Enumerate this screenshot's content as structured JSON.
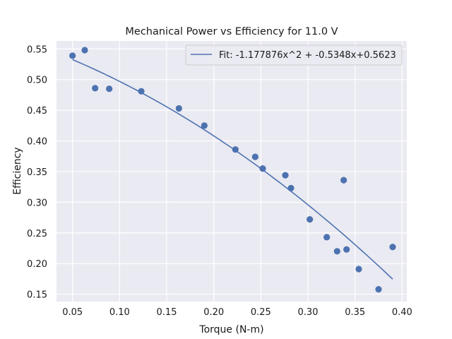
{
  "chart_data": {
    "type": "scatter",
    "title": "Mechanical Power vs Efficiency for 11.0 V",
    "xlabel": "Torque (N-m)",
    "ylabel": "Efficiency",
    "xlim": [
      0.033,
      0.405
    ],
    "ylim": [
      0.138,
      0.563
    ],
    "xticks": [
      0.05,
      0.1,
      0.15,
      0.2,
      0.25,
      0.3,
      0.35,
      0.4
    ],
    "xtick_labels": [
      "0.05",
      "0.10",
      "0.15",
      "0.20",
      "0.25",
      "0.30",
      "0.35",
      "0.40"
    ],
    "yticks": [
      0.15,
      0.2,
      0.25,
      0.3,
      0.35,
      0.4,
      0.45,
      0.5,
      0.55
    ],
    "ytick_labels": [
      "0.15",
      "0.20",
      "0.25",
      "0.30",
      "0.35",
      "0.40",
      "0.45",
      "0.50",
      "0.55"
    ],
    "grid": true,
    "legend_position": "top-right",
    "point_color": "#4c72b0",
    "line_color": "#4c72b0",
    "background_color": "#eaeaf2",
    "points": [
      {
        "x": 0.05,
        "y": 0.539
      },
      {
        "x": 0.063,
        "y": 0.548
      },
      {
        "x": 0.074,
        "y": 0.486
      },
      {
        "x": 0.089,
        "y": 0.485
      },
      {
        "x": 0.123,
        "y": 0.481
      },
      {
        "x": 0.163,
        "y": 0.453
      },
      {
        "x": 0.19,
        "y": 0.425
      },
      {
        "x": 0.223,
        "y": 0.386
      },
      {
        "x": 0.244,
        "y": 0.374
      },
      {
        "x": 0.252,
        "y": 0.355
      },
      {
        "x": 0.276,
        "y": 0.344
      },
      {
        "x": 0.282,
        "y": 0.323
      },
      {
        "x": 0.302,
        "y": 0.272
      },
      {
        "x": 0.32,
        "y": 0.243
      },
      {
        "x": 0.331,
        "y": 0.22
      },
      {
        "x": 0.338,
        "y": 0.336
      },
      {
        "x": 0.341,
        "y": 0.223
      },
      {
        "x": 0.354,
        "y": 0.191
      },
      {
        "x": 0.375,
        "y": 0.158
      },
      {
        "x": 0.39,
        "y": 0.227
      }
    ],
    "fit": {
      "label": "Fit: -1.177876x^2 + -0.5348x+0.5623",
      "a": -1.177876,
      "b": -0.5348,
      "c": 0.5623,
      "x_start": 0.05,
      "x_end": 0.39
    }
  }
}
